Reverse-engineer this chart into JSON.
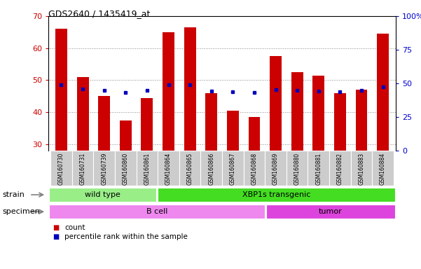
{
  "title": "GDS2640 / 1435419_at",
  "samples": [
    "GSM160730",
    "GSM160731",
    "GSM160739",
    "GSM160860",
    "GSM160861",
    "GSM160864",
    "GSM160865",
    "GSM160866",
    "GSM160867",
    "GSM160868",
    "GSM160869",
    "GSM160880",
    "GSM160881",
    "GSM160882",
    "GSM160883",
    "GSM160884"
  ],
  "counts": [
    66,
    51,
    45,
    37.5,
    44.5,
    65,
    66.5,
    46,
    40.5,
    38.5,
    57.5,
    52.5,
    51.5,
    46,
    47,
    64.5
  ],
  "percentiles_right": [
    49,
    46,
    45,
    43.5,
    45,
    49,
    49,
    44.5,
    44,
    43,
    45.5,
    45,
    44.5,
    44,
    45,
    47.5
  ],
  "ylim_left": [
    28,
    70
  ],
  "ylim_right": [
    0,
    100
  ],
  "yticks_left": [
    30,
    40,
    50,
    60,
    70
  ],
  "yticks_right": [
    0,
    25,
    50,
    75,
    100
  ],
  "ytick_labels_right": [
    "0",
    "25",
    "50",
    "75",
    "100%"
  ],
  "bar_color": "#cc0000",
  "dot_color": "#0000bb",
  "bar_bottom": 28,
  "strain_groups": [
    {
      "label": "wild type",
      "start": 0,
      "end": 5,
      "color": "#99ee88"
    },
    {
      "label": "XBP1s transgenic",
      "start": 5,
      "end": 16,
      "color": "#44dd22"
    }
  ],
  "specimen_groups": [
    {
      "label": "B cell",
      "start": 0,
      "end": 10,
      "color": "#ee88ee"
    },
    {
      "label": "tumor",
      "start": 10,
      "end": 16,
      "color": "#dd44dd"
    }
  ],
  "strain_label": "strain",
  "specimen_label": "specimen",
  "legend_count_label": "count",
  "legend_pct_label": "percentile rank within the sample",
  "grid_color": "#888888",
  "axis_color_left": "#cc0000",
  "axis_color_right": "#0000cc",
  "bg_color": "#ffffff",
  "label_area_color": "#cccccc"
}
